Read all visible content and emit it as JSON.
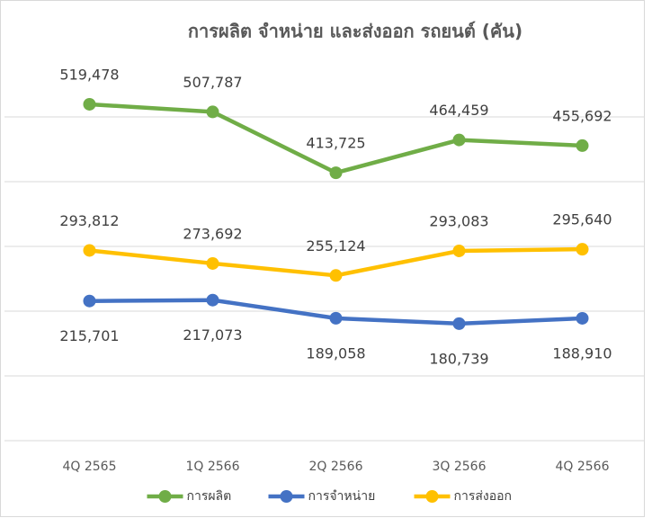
{
  "chart_data": {
    "type": "line",
    "title": "การผลิต จำหน่าย และส่งออก รถยนต์ (คัน)",
    "categories": [
      "4Q 2565",
      "1Q 2566",
      "2Q 2566",
      "3Q 2566",
      "4Q 2566"
    ],
    "series": [
      {
        "name": "การผลิต",
        "color": "#70ad47",
        "values": [
          519478,
          507787,
          413725,
          464459,
          455692
        ],
        "value_labels": [
          "519,478",
          "507,787",
          "413,725",
          "464,459",
          "455,692"
        ]
      },
      {
        "name": "การจำหน่าย",
        "color": "#4472c4",
        "values": [
          215701,
          217073,
          189058,
          180739,
          188910
        ],
        "value_labels": [
          "215,701",
          "217,073",
          "189,058",
          "180,739",
          "188,910"
        ]
      },
      {
        "name": "การส่งออก",
        "color": "#ffc000",
        "values": [
          293812,
          273692,
          255124,
          293083,
          295640
        ],
        "value_labels": [
          "293,812",
          "273,692",
          "255,124",
          "293,083",
          "295,640"
        ]
      }
    ],
    "ylim": [
      0,
      600000
    ],
    "yticks": [
      0,
      100000,
      200000,
      300000,
      400000,
      500000
    ],
    "grid": true,
    "legend": "bottom"
  }
}
